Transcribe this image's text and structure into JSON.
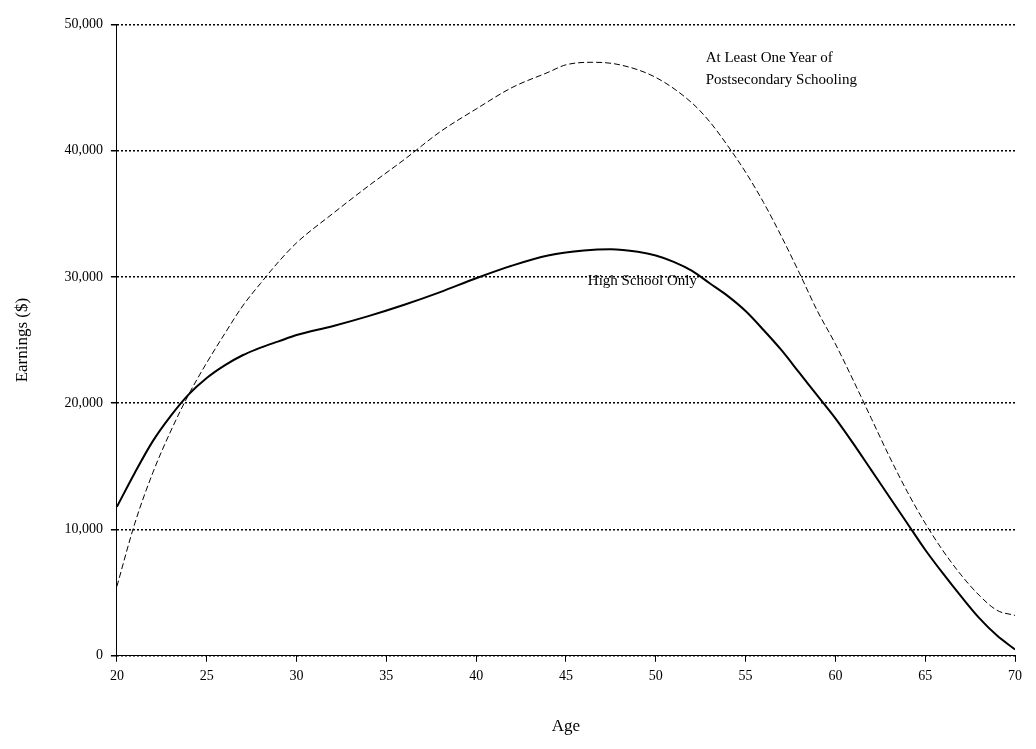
{
  "chart_data": {
    "type": "line",
    "xlabel": "Age",
    "ylabel": "Earnings ($)",
    "xlim": [
      20,
      70
    ],
    "xticks": [
      20,
      25,
      30,
      35,
      40,
      45,
      50,
      55,
      60,
      65,
      70
    ],
    "ylim": [
      0,
      50000
    ],
    "yticks": [
      {
        "value": 0,
        "label": "0"
      },
      {
        "value": 10000,
        "label": "10,000"
      },
      {
        "value": 20000,
        "label": "20,000"
      },
      {
        "value": 30000,
        "label": "30,000"
      },
      {
        "value": 40000,
        "label": "40,000"
      },
      {
        "value": 50000,
        "label": "50,000"
      }
    ],
    "grid": "y",
    "marker": "none",
    "legend": false,
    "series": [
      {
        "name": "High School Only",
        "color": "#000000",
        "line_style": "solid",
        "x": [
          20,
          21,
          22,
          23,
          24,
          25,
          26,
          27,
          28,
          29,
          30,
          32,
          34,
          36,
          38,
          40,
          42,
          44,
          46,
          47.5,
          49,
          50,
          51,
          52,
          53,
          54,
          55,
          56,
          57,
          58,
          59,
          60,
          61,
          62,
          63,
          64,
          65,
          66,
          67,
          68,
          69,
          70
        ],
        "values": [
          11800,
          14500,
          17000,
          19000,
          20700,
          22000,
          23000,
          23800,
          24400,
          24900,
          25400,
          26100,
          26900,
          27800,
          28800,
          29900,
          30900,
          31700,
          32100,
          32200,
          32000,
          31700,
          31200,
          30500,
          29500,
          28500,
          27300,
          25800,
          24200,
          22400,
          20600,
          18800,
          16800,
          14700,
          12600,
          10500,
          8400,
          6500,
          4700,
          3000,
          1600,
          500
        ]
      },
      {
        "name": "At Least One Year of Postsecondary Schooling",
        "color": "#000000",
        "line_style": "dashed",
        "x": [
          20,
          21,
          22,
          23,
          24,
          25,
          26,
          27,
          28,
          29,
          30,
          32,
          34,
          36,
          38,
          40,
          42,
          44,
          45,
          46.5,
          48,
          50,
          52,
          53,
          54,
          55,
          56,
          57,
          58,
          59,
          60,
          61,
          62,
          63,
          64,
          65,
          66,
          67,
          68,
          69,
          70
        ],
        "values": [
          5500,
          10500,
          14500,
          17800,
          20700,
          23200,
          25500,
          27700,
          29500,
          31200,
          32700,
          35000,
          37200,
          39300,
          41500,
          43300,
          45000,
          46200,
          46800,
          47000,
          46800,
          45800,
          43800,
          42300,
          40400,
          38300,
          35900,
          33200,
          30300,
          27300,
          24700,
          21800,
          18800,
          15800,
          13000,
          10500,
          8300,
          6400,
          4800,
          3600,
          3200
        ]
      }
    ]
  }
}
